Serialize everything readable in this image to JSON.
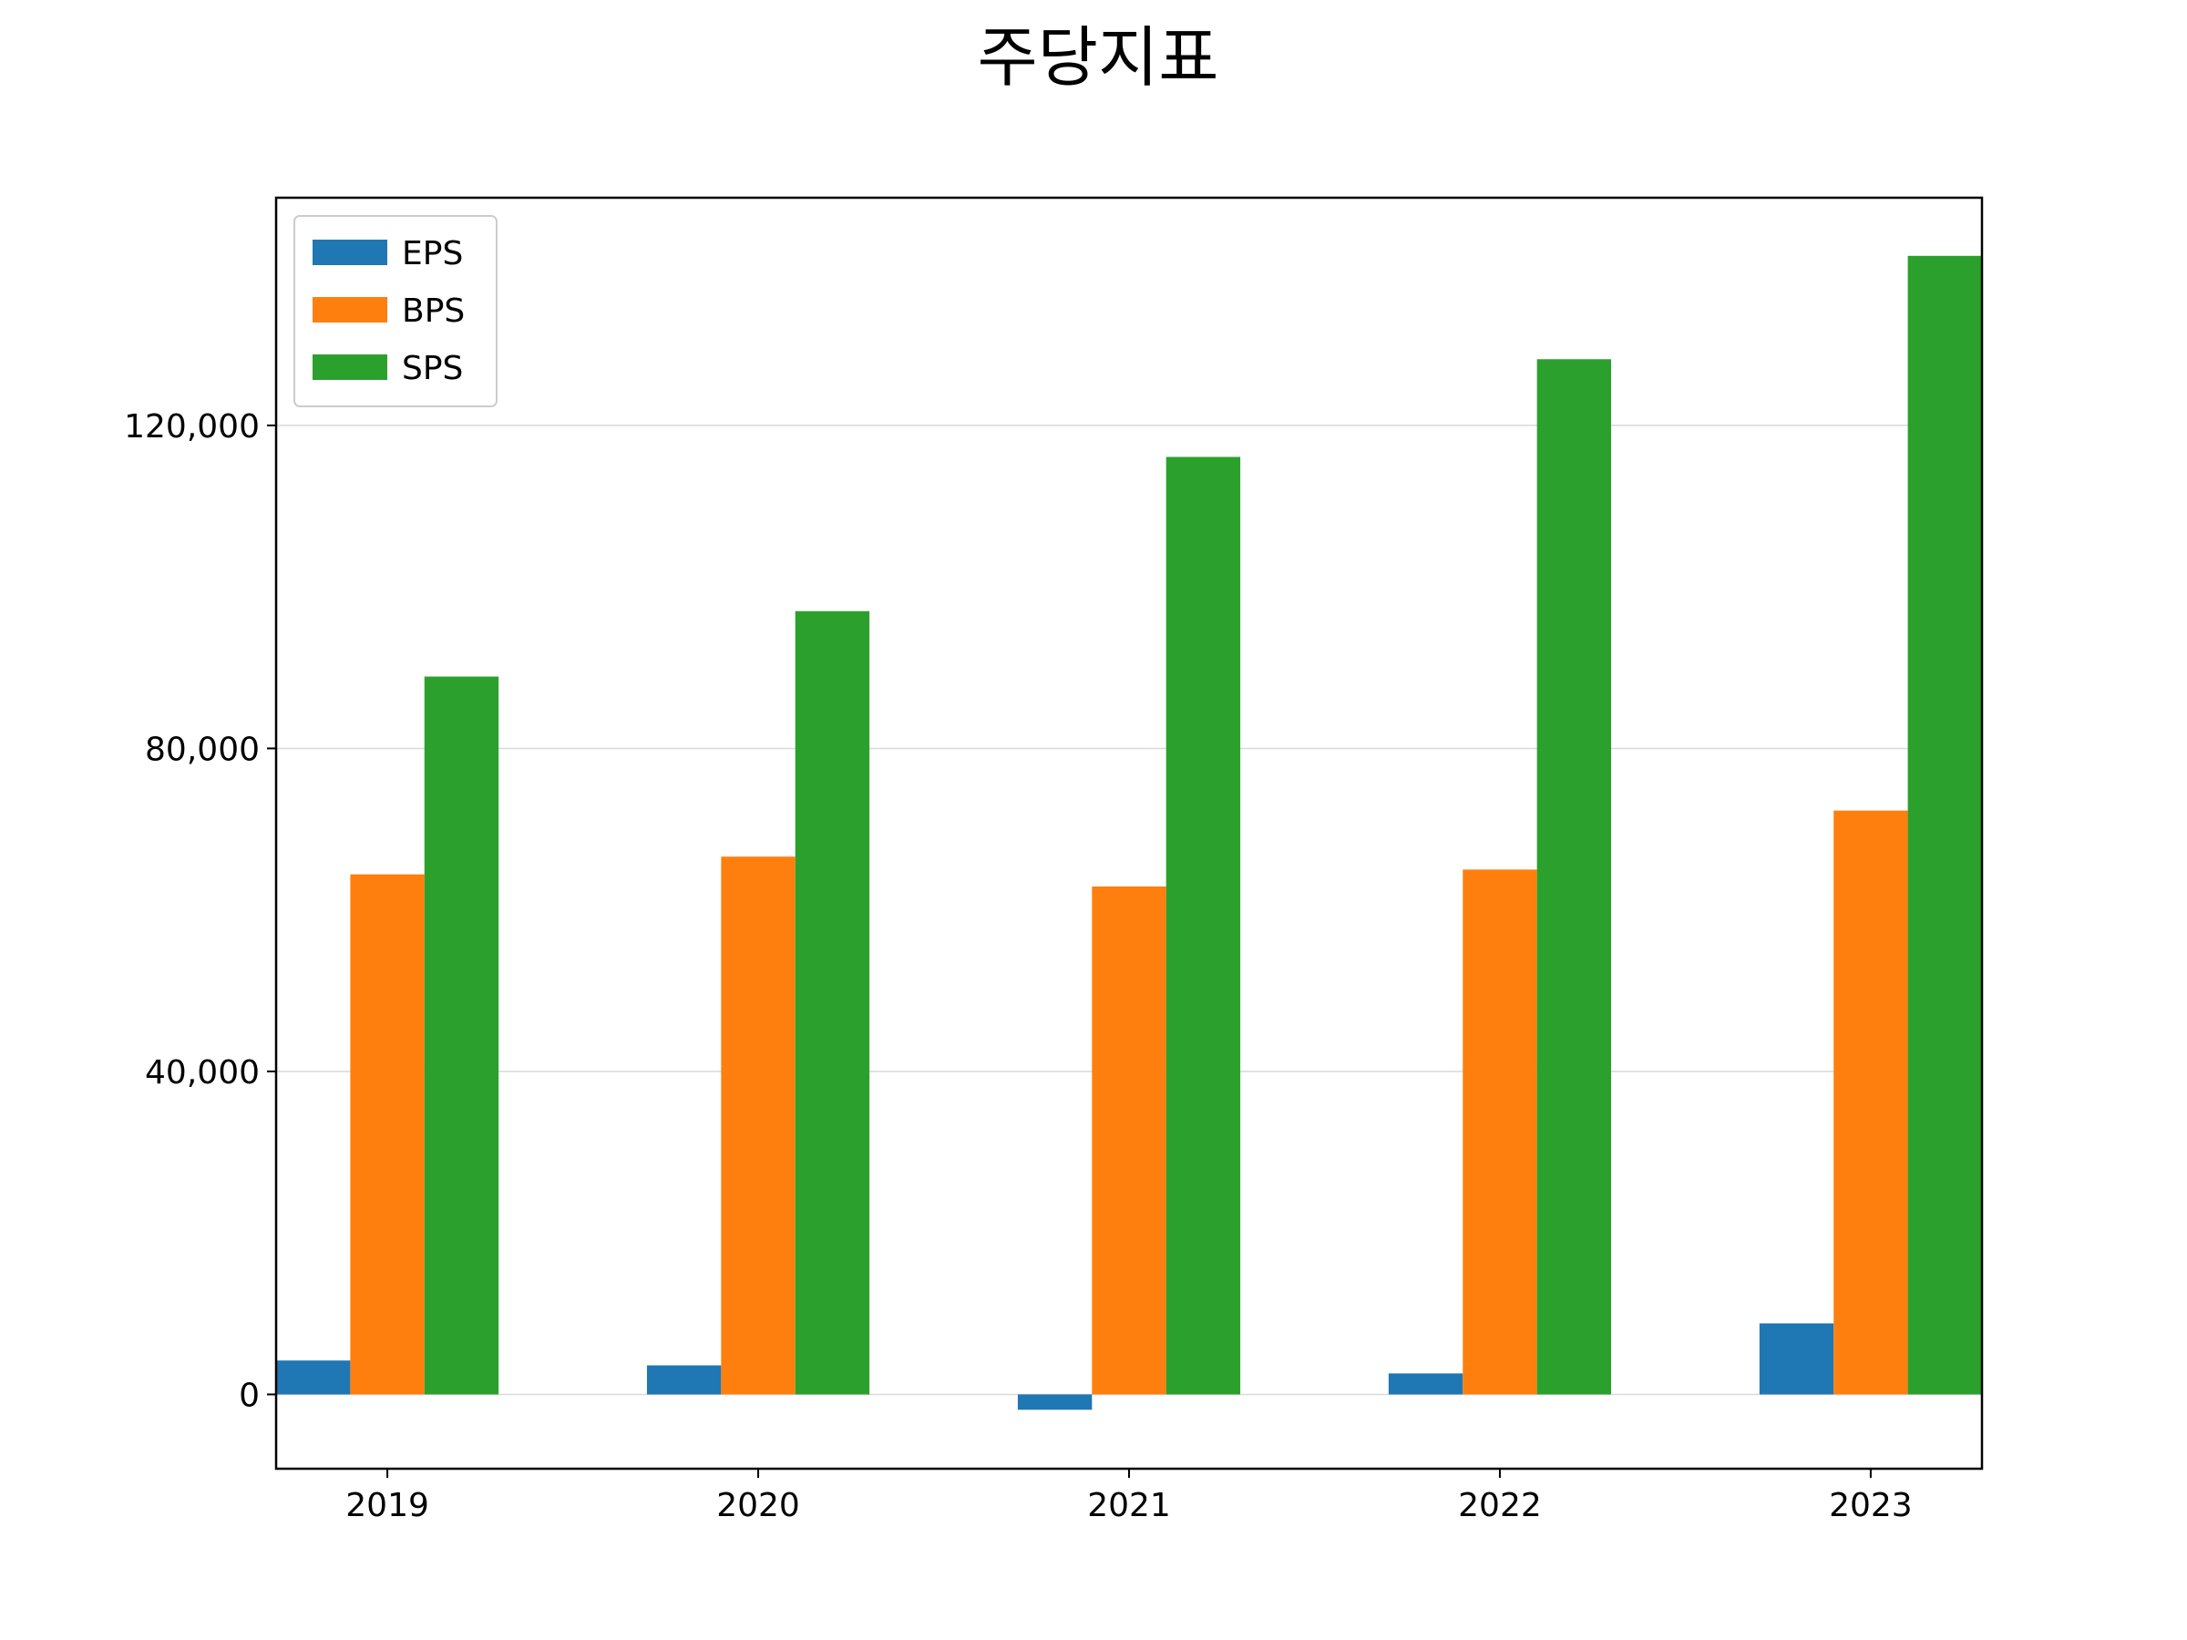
{
  "chart_data": {
    "type": "bar",
    "title": "주당지표",
    "xlabel": "",
    "ylabel": "",
    "categories": [
      "2019",
      "2020",
      "2021",
      "2022",
      "2023"
    ],
    "series": [
      {
        "name": "EPS",
        "color": "#1f77b4",
        "values": [
          4200,
          3600,
          -1900,
          2600,
          8800
        ]
      },
      {
        "name": "BPS",
        "color": "#ff7f0e",
        "values": [
          64400,
          66600,
          62900,
          65000,
          72300
        ]
      },
      {
        "name": "SPS",
        "color": "#2ca02c",
        "values": [
          88900,
          97000,
          116100,
          128200,
          141000
        ]
      }
    ],
    "ylim": [
      -9200,
      148200
    ],
    "yticks": [
      0,
      40000,
      80000,
      120000
    ],
    "ytick_labels": [
      "0",
      "40,000",
      "80,000",
      "120,000"
    ],
    "grid": "y",
    "legend": "upper-left"
  }
}
